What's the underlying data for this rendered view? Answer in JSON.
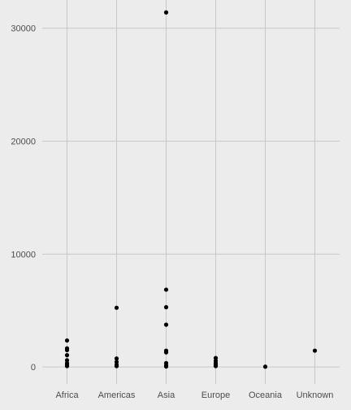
{
  "chart_data": {
    "type": "scatter",
    "title": "",
    "xlabel": "",
    "ylabel": "",
    "categories": [
      "Africa",
      "Americas",
      "Asia",
      "Europe",
      "Oceania",
      "Unknown"
    ],
    "ylim": [
      -1500,
      32500
    ],
    "yticks": [
      0,
      10000,
      20000,
      30000
    ],
    "ytick_labels": [
      "0",
      "10000",
      "20000",
      "30000"
    ],
    "grid": true,
    "legend": "none",
    "colors": {
      "background": "#ececec",
      "grid": "#c8c8c8",
      "point": "#000000",
      "text": "#4d4d4d"
    },
    "points": [
      {
        "category": "Africa",
        "value": 2350
      },
      {
        "category": "Africa",
        "value": 1650
      },
      {
        "category": "Africa",
        "value": 1500
      },
      {
        "category": "Africa",
        "value": 1050
      },
      {
        "category": "Africa",
        "value": 600
      },
      {
        "category": "Africa",
        "value": 350
      },
      {
        "category": "Africa",
        "value": 200
      },
      {
        "category": "Africa",
        "value": 80
      },
      {
        "category": "Americas",
        "value": 5250
      },
      {
        "category": "Americas",
        "value": 750
      },
      {
        "category": "Americas",
        "value": 450
      },
      {
        "category": "Americas",
        "value": 200
      },
      {
        "category": "Americas",
        "value": 80
      },
      {
        "category": "Asia",
        "value": 31400
      },
      {
        "category": "Asia",
        "value": 6850
      },
      {
        "category": "Asia",
        "value": 5300
      },
      {
        "category": "Asia",
        "value": 3750
      },
      {
        "category": "Asia",
        "value": 1450
      },
      {
        "category": "Asia",
        "value": 1300
      },
      {
        "category": "Asia",
        "value": 350
      },
      {
        "category": "Asia",
        "value": 150
      },
      {
        "category": "Asia",
        "value": 50
      },
      {
        "category": "Europe",
        "value": 800
      },
      {
        "category": "Europe",
        "value": 550
      },
      {
        "category": "Europe",
        "value": 350
      },
      {
        "category": "Europe",
        "value": 200
      },
      {
        "category": "Europe",
        "value": 80
      },
      {
        "category": "Oceania",
        "value": 30
      },
      {
        "category": "Unknown",
        "value": 1450
      }
    ]
  }
}
